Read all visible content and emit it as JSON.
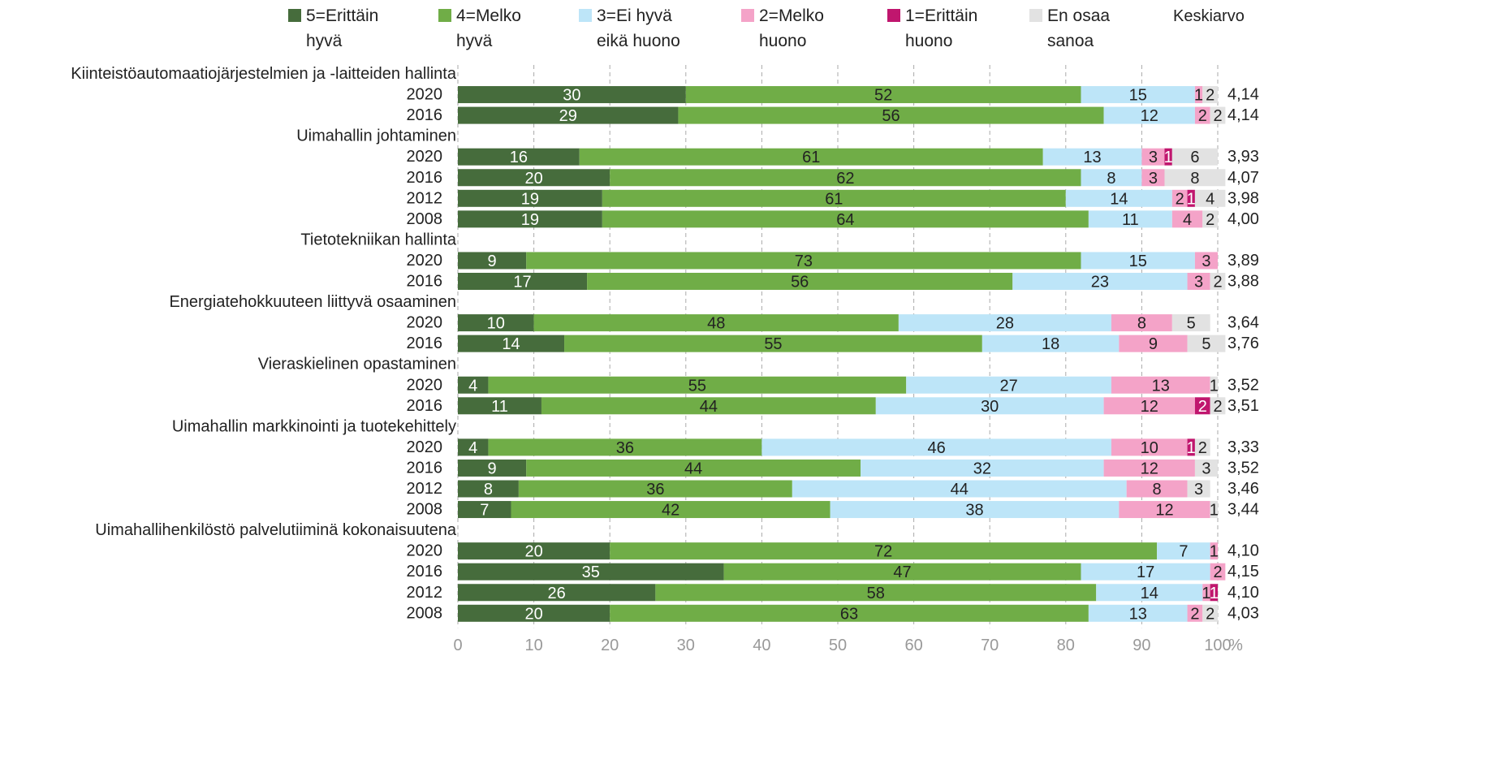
{
  "chart_data": {
    "type": "stacked-bar-horizontal",
    "categories": [
      "Kiinteistöautomaatiojärjestelmien ja -laitteiden hallinta",
      "2020",
      "2016",
      "Uimahallin johtaminen",
      "2020",
      "2016",
      "2012",
      "2008",
      "Tietotekniikan hallinta",
      "2020",
      "2016",
      "Energiatehokkuuteen liittyvä osaaminen",
      "2020",
      "2016",
      "Vieraskielinen opastaminen",
      "2020",
      "2016",
      "Uimahallin markkinointi ja tuotekehittely",
      "2020",
      "2016",
      "2012",
      "2008",
      "Uimahallihenkilöstö palvelutiiminä kokonaisuutena",
      "2020",
      "2016",
      "2012",
      "2008"
    ],
    "series": [
      {
        "name": "5=Erittäin hyvä",
        "color": "#466c3c",
        "values": [
          null,
          30,
          29,
          null,
          16,
          20,
          19,
          19,
          null,
          9,
          17,
          null,
          10,
          14,
          null,
          4,
          11,
          null,
          4,
          9,
          8,
          7,
          null,
          20,
          35,
          26,
          20
        ]
      },
      {
        "name": "4=Melko hyvä",
        "color": "#70ad47",
        "values": [
          null,
          52,
          56,
          null,
          61,
          62,
          61,
          64,
          null,
          73,
          56,
          null,
          48,
          55,
          null,
          55,
          44,
          null,
          36,
          44,
          36,
          42,
          null,
          72,
          47,
          58,
          63
        ]
      },
      {
        "name": "3=Ei hyvä eikä huono",
        "color": "#bde5f8",
        "values": [
          null,
          15,
          12,
          null,
          13,
          8,
          14,
          11,
          null,
          15,
          23,
          null,
          28,
          18,
          null,
          27,
          30,
          null,
          46,
          32,
          44,
          38,
          null,
          7,
          17,
          14,
          13
        ]
      },
      {
        "name": "2=Melko huono",
        "color": "#f4a3c8",
        "values": [
          null,
          1,
          2,
          null,
          3,
          3,
          2,
          4,
          null,
          3,
          3,
          null,
          8,
          9,
          null,
          13,
          12,
          null,
          10,
          12,
          8,
          12,
          null,
          1,
          2,
          1,
          2
        ]
      },
      {
        "name": "1=Erittäin huono",
        "color": "#c0166e",
        "values": [
          null,
          null,
          null,
          null,
          1,
          null,
          1,
          null,
          null,
          null,
          null,
          null,
          null,
          null,
          null,
          null,
          2,
          null,
          1,
          null,
          null,
          null,
          null,
          null,
          null,
          1,
          null
        ]
      },
      {
        "name": "En osaa sanoa",
        "color": "#e2e2e2",
        "values": [
          null,
          2,
          2,
          null,
          6,
          8,
          4,
          2,
          null,
          null,
          2,
          null,
          5,
          5,
          null,
          1,
          2,
          null,
          2,
          3,
          3,
          1,
          null,
          null,
          null,
          null,
          2
        ]
      }
    ],
    "mean": {
      "name": "Keskiarvo",
      "values": [
        null,
        4.14,
        4.14,
        null,
        3.93,
        4.07,
        3.98,
        4.0,
        null,
        3.89,
        3.88,
        null,
        3.64,
        3.76,
        null,
        3.52,
        3.51,
        null,
        3.33,
        3.52,
        3.46,
        3.44,
        null,
        4.1,
        4.15,
        4.1,
        4.03
      ],
      "value_labels": [
        null,
        "4,14",
        "4,14",
        null,
        "3,93",
        "4,07",
        "3,98",
        "4,00",
        null,
        "3,89",
        "3,88",
        null,
        "3,64",
        "3,76",
        null,
        "3,52",
        "3,51",
        null,
        "3,33",
        "3,52",
        "3,46",
        "3,44",
        null,
        "4,10",
        "4,15",
        "4,10",
        "4,03"
      ]
    },
    "xlim": [
      0,
      100
    ],
    "xticks": [
      0,
      10,
      20,
      30,
      40,
      50,
      60,
      70,
      80,
      90,
      100
    ],
    "x_unit": "%",
    "grid": true
  }
}
